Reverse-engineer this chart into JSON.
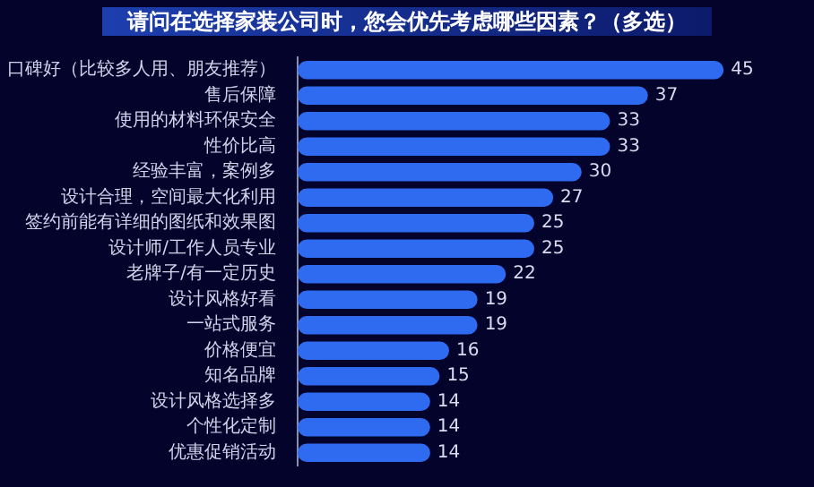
{
  "chart_data": {
    "type": "bar",
    "orientation": "horizontal",
    "title": "请问在选择家装公司时，您会优先考虑哪些因素？（多选）",
    "categories": [
      "口碑好（比较多人用、朋友推荐）",
      "售后保障",
      "使用的材料环保安全",
      "性价比高",
      "经验丰富，案例多",
      "设计合理，空间最大化利用",
      "签约前能有详细的图纸和效果图",
      "设计师/工作人员专业",
      "老牌子/有一定历史",
      "设计风格好看",
      "一站式服务",
      "价格便宜",
      "知名品牌",
      "设计风格选择多",
      "个性化定制",
      "优惠促销活动"
    ],
    "values": [
      45,
      37,
      33,
      33,
      30,
      27,
      25,
      25,
      22,
      19,
      19,
      16,
      15,
      14,
      14,
      14
    ],
    "color": "#2f6bf0",
    "data_labels": true
  }
}
